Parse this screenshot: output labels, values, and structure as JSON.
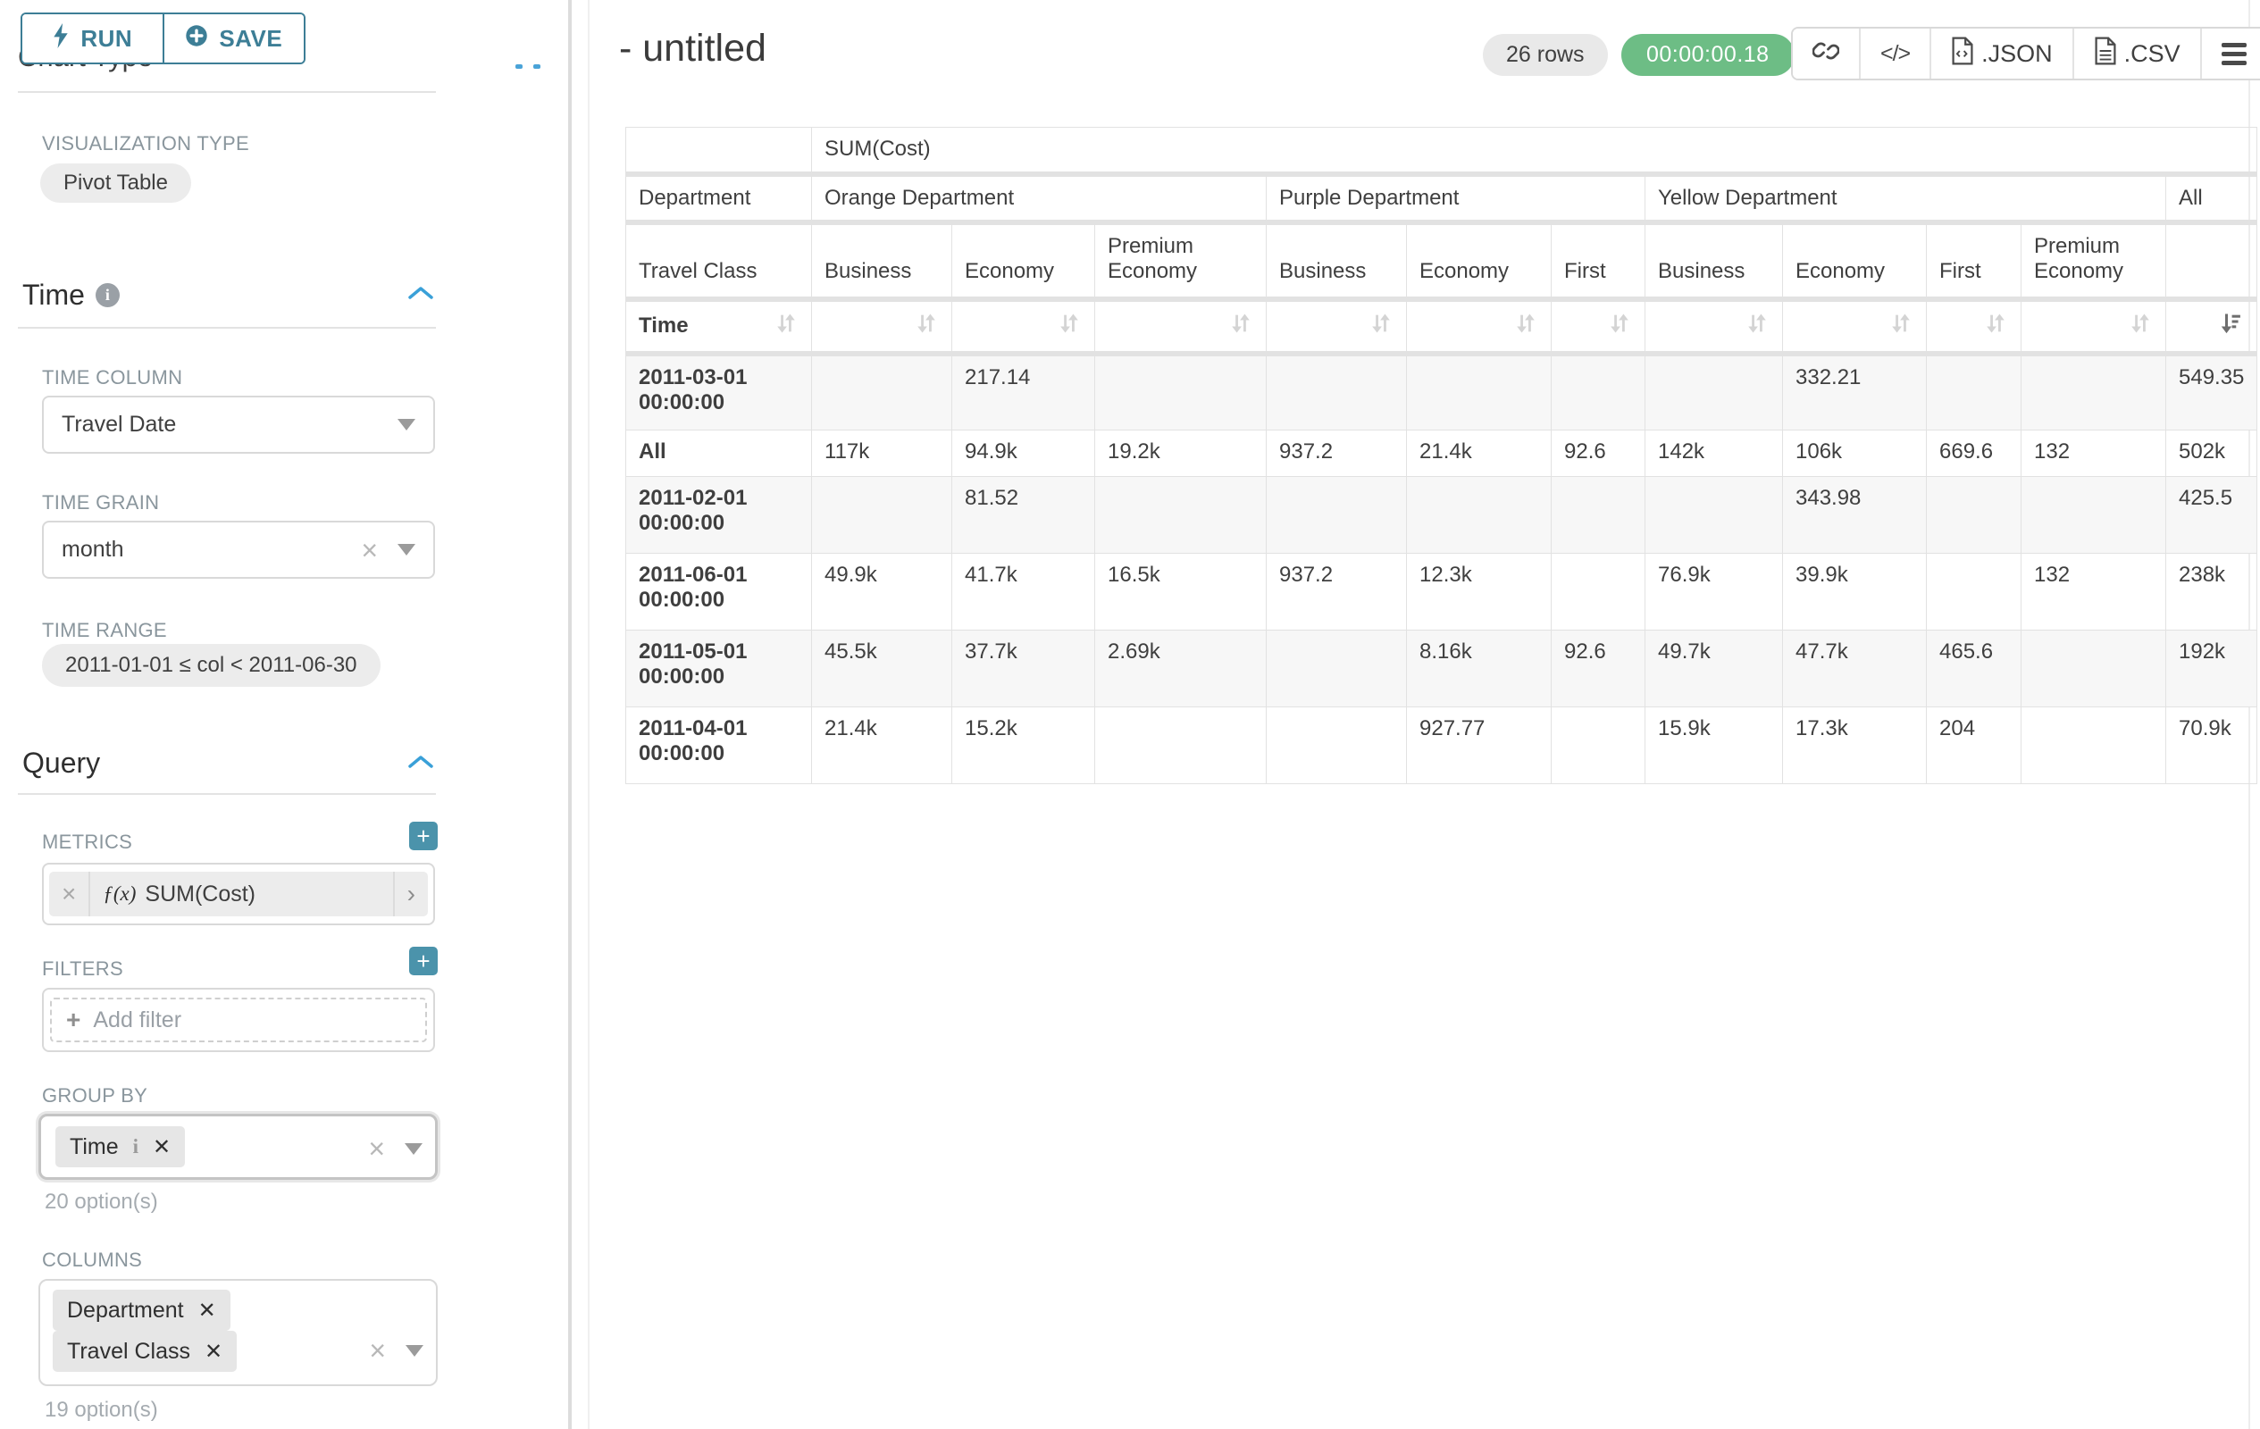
{
  "sidebar": {
    "run_label": "RUN",
    "save_label": "SAVE",
    "chart_type_heading": "Chart Type",
    "visualization_type_label": "VISUALIZATION TYPE",
    "visualization_type_value": "Pivot Table",
    "time_section": {
      "title": "Time",
      "time_column_label": "TIME COLUMN",
      "time_column_value": "Travel Date",
      "time_grain_label": "TIME GRAIN",
      "time_grain_value": "month",
      "time_range_label": "TIME RANGE",
      "time_range_value": "2011-01-01 ≤ col < 2011-06-30"
    },
    "query_section": {
      "title": "Query",
      "metrics_label": "METRICS",
      "metric_fx": "ƒ(x)",
      "metric_value": "SUM(Cost)",
      "filters_label": "FILTERS",
      "add_filter_label": "Add filter",
      "group_by_label": "GROUP BY",
      "group_by_value": "Time",
      "group_by_options": "20 option(s)",
      "columns_label": "COLUMNS",
      "columns_values": [
        "Department",
        "Travel Class"
      ],
      "columns_options": "19 option(s)"
    }
  },
  "header": {
    "title": "- untitled",
    "rows_badge": "26 rows",
    "timer": "00:00:00.18",
    "json_label": ".JSON",
    "csv_label": ".CSV"
  },
  "table": {
    "metric_header": "SUM(Cost)",
    "row_header": "Department",
    "class_header": "Travel Class",
    "time_header": "Time",
    "department_groups": [
      {
        "label": "Orange Department",
        "span": 3
      },
      {
        "label": "Purple Department",
        "span": 3
      },
      {
        "label": "Yellow Department",
        "span": 4
      },
      {
        "label": "All",
        "span": 1
      }
    ],
    "class_columns": [
      "Business",
      "Economy",
      "Premium Economy",
      "Business",
      "Economy",
      "First",
      "Business",
      "Economy",
      "First",
      "Premium Economy",
      ""
    ],
    "rows": [
      {
        "label": "2011-03-01 00:00:00",
        "tall": true,
        "striped": true,
        "values": [
          "",
          "217.14",
          "",
          "",
          "",
          "",
          "",
          "332.21",
          "",
          "",
          "549.35"
        ]
      },
      {
        "label": "All",
        "tall": false,
        "striped": false,
        "values": [
          "117k",
          "94.9k",
          "19.2k",
          "937.2",
          "21.4k",
          "92.6",
          "142k",
          "106k",
          "669.6",
          "132",
          "502k"
        ]
      },
      {
        "label": "2011-02-01 00:00:00",
        "tall": true,
        "striped": true,
        "values": [
          "",
          "81.52",
          "",
          "",
          "",
          "",
          "",
          "343.98",
          "",
          "",
          "425.5"
        ]
      },
      {
        "label": "2011-06-01 00:00:00",
        "tall": true,
        "striped": false,
        "values": [
          "49.9k",
          "41.7k",
          "16.5k",
          "937.2",
          "12.3k",
          "",
          "76.9k",
          "39.9k",
          "",
          "132",
          "238k"
        ]
      },
      {
        "label": "2011-05-01 00:00:00",
        "tall": true,
        "striped": true,
        "values": [
          "45.5k",
          "37.7k",
          "2.69k",
          "",
          "8.16k",
          "92.6",
          "49.7k",
          "47.7k",
          "465.6",
          "",
          "192k"
        ]
      },
      {
        "label": "2011-04-01 00:00:00",
        "tall": true,
        "striped": false,
        "values": [
          "21.4k",
          "15.2k",
          "",
          "",
          "927.77",
          "",
          "15.9k",
          "17.3k",
          "204",
          "",
          "70.9k"
        ]
      }
    ]
  },
  "colors": {
    "accent_teal": "#3d7e96",
    "plus_teal": "#4b93ab",
    "timer_green": "#6dbd85",
    "chevron_blue": "#3aa0d8"
  }
}
